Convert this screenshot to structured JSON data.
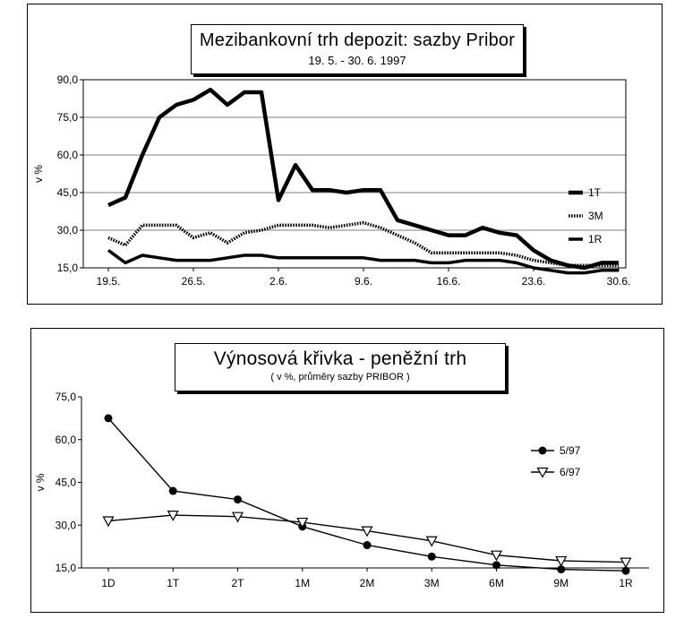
{
  "charts": [
    {
      "title": "Mezibankovní trh depozit: sazby Pribor",
      "subtitle": "19. 5. - 30. 6. 1997",
      "ylabel": "v %",
      "y_ticks": [
        "15,0",
        "30,0",
        "45,0",
        "60,0",
        "75,0",
        "90,0"
      ],
      "x_ticks": [
        "19.5.",
        "26.5.",
        "2.6.",
        "9.6.",
        "16.6.",
        "23.6.",
        "30.6."
      ],
      "legend": [
        "1T",
        "3M",
        "1R"
      ]
    },
    {
      "title": "Výnosová křivka - peněžní trh",
      "subtitle": "( v %, průměry sazby PRIBOR )",
      "ylabel": "v %",
      "y_ticks": [
        "15,0",
        "30,0",
        "45,0",
        "60,0",
        "75,0"
      ],
      "legend": [
        "5/97",
        "6/97"
      ]
    }
  ],
  "chart_data": [
    {
      "type": "line",
      "title": "Mezibankovní trh depozit: sazby Pribor",
      "subtitle": "19. 5. - 30. 6. 1997",
      "ylabel": "v %",
      "ylim": [
        15,
        90
      ],
      "x_tick_labels": [
        "19.5.",
        "26.5.",
        "2.6.",
        "9.6.",
        "16.6.",
        "23.6.",
        "30.6."
      ],
      "x_tick_index": [
        0,
        5,
        10,
        15,
        20,
        25,
        30
      ],
      "legend_position": "right",
      "grid": "horizontal",
      "series": [
        {
          "name": "1T",
          "color": "#000000",
          "style": "thick",
          "values": [
            40,
            43,
            60,
            75,
            80,
            82,
            86,
            80,
            85,
            85,
            42,
            56,
            46,
            46,
            45,
            46,
            46,
            34,
            32,
            30,
            28,
            28,
            31,
            29,
            28,
            22,
            18,
            16,
            15,
            17,
            17
          ]
        },
        {
          "name": "3M",
          "color": "#000000",
          "style": "dotted",
          "values": [
            27,
            24,
            32,
            32,
            32,
            27,
            29,
            25,
            29,
            30,
            32,
            32,
            32,
            31,
            32,
            33,
            31,
            28,
            25,
            21,
            21,
            21,
            21,
            21,
            20,
            18,
            17,
            16,
            16,
            16,
            16
          ]
        },
        {
          "name": "1R",
          "color": "#000000",
          "style": "medium",
          "values": [
            22,
            17,
            20,
            19,
            18,
            18,
            18,
            19,
            20,
            20,
            19,
            19,
            19,
            19,
            19,
            19,
            18,
            18,
            18,
            17,
            17,
            18,
            18,
            18,
            17,
            15,
            14,
            13,
            13,
            14,
            14
          ]
        }
      ]
    },
    {
      "type": "line",
      "title": "Výnosová křivka - peněžní trh",
      "subtitle": "( v %, průměry sazby PRIBOR )",
      "ylabel": "v %",
      "ylim": [
        15,
        75
      ],
      "categories": [
        "1D",
        "1T",
        "2T",
        "1M",
        "2M",
        "3M",
        "6M",
        "9M",
        "1R"
      ],
      "legend_position": "right",
      "grid": "none",
      "series": [
        {
          "name": "5/97",
          "marker": "circle",
          "values": [
            67.5,
            42,
            39,
            29.5,
            23,
            19,
            16,
            14.5,
            14
          ]
        },
        {
          "name": "6/97",
          "marker": "triangle-down",
          "values": [
            31.5,
            33.5,
            33,
            31,
            28,
            24.5,
            19.5,
            17.5,
            17
          ]
        }
      ]
    }
  ]
}
